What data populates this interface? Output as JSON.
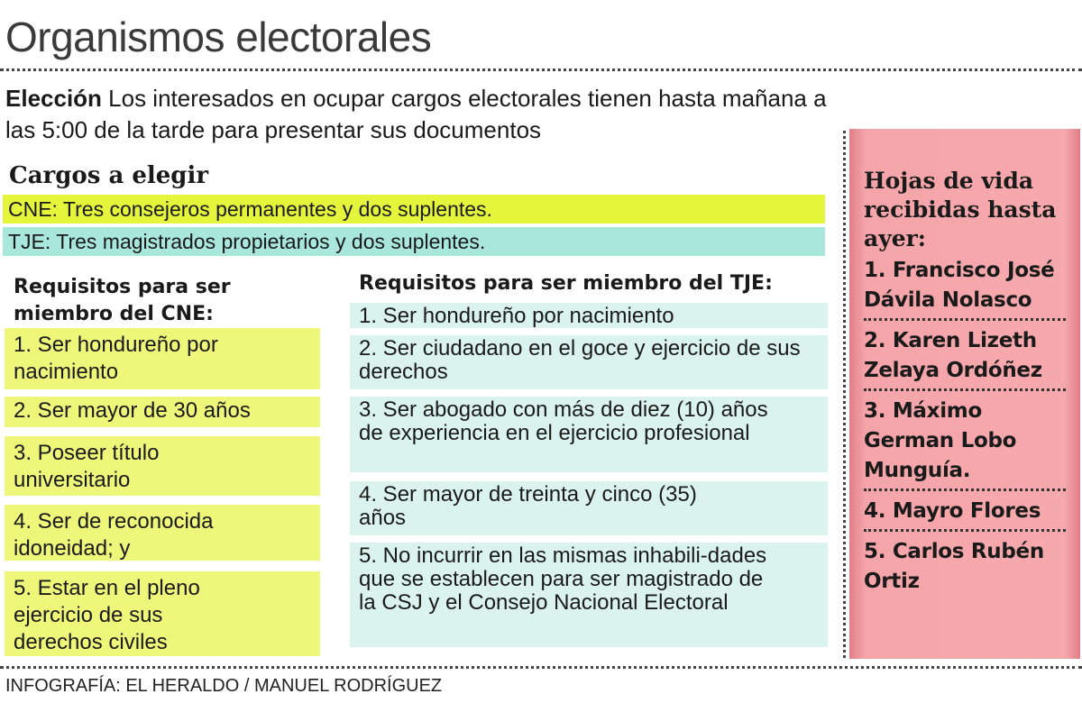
{
  "title": "Organismos electorales",
  "intro": {
    "lead": "Elección",
    "text": " Los interesados en ocupar cargos electorales tienen hasta mañana a las 5:00 de la tarde para presentar sus documentos"
  },
  "cargos": {
    "heading": "Cargos a elegir",
    "cne": "CNE: Tres consejeros permanentes y dos suplentes.",
    "tje": "TJE: Tres magistrados propietarios y dos suplentes."
  },
  "cne_requisitos": {
    "heading": "Requisitos para ser miembro del CNE:",
    "items": [
      "1. Ser hondureño por nacimiento",
      "2. Ser mayor de 30 años",
      "3. Poseer título universitario",
      "4. Ser de reconocida idoneidad; y",
      "5. Estar en el pleno ejercicio de sus derechos civiles"
    ]
  },
  "tje_requisitos": {
    "heading": "Requisitos para ser miembro del TJE:",
    "items": [
      "1. Ser hondureño por nacimiento",
      "2. Ser ciudadano en el goce y ejercicio de sus derechos",
      "3. Ser abogado con más de diez (10) años de experiencia en el ejercicio profesional",
      "4. Ser mayor de treinta y cinco (35) años",
      "5. No incurrir en las mismas inhabili-dades que se establecen para ser magistrado de la CSJ y el Consejo Nacional Electoral"
    ]
  },
  "hojas": {
    "heading": "Hojas de vida recibidas hasta ayer:",
    "items": [
      "1. Francisco José Dávila Nolasco",
      "2. Karen Lizeth Zelaya Ordóñez",
      "3. Máximo German Lobo Munguía.",
      "4. Mayro Flores",
      "5. Carlos Rubén Ortiz"
    ]
  },
  "footer": "INFOGRAFÍA: EL HERALDO / MANUEL RODRÍGUEZ",
  "colors": {
    "cne_band": "#e4f53c",
    "cne_item": "#eef77a",
    "tje_band": "#a9e6dc",
    "tje_item": "#dbf3ee",
    "pink": "#f6a9ad"
  }
}
